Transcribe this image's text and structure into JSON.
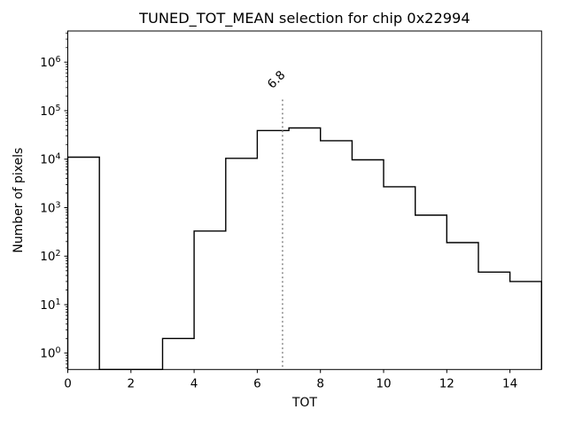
{
  "figure": {
    "background": "#ffffff"
  },
  "chart_data": {
    "type": "bar",
    "subtype": "step-histogram",
    "title": "TUNED_TOT_MEAN selection for chip 0x22994",
    "xlabel": "TOT",
    "ylabel": "Number of pixels",
    "xscale": "linear",
    "yscale": "log",
    "xlim": [
      0,
      15
    ],
    "ylim": [
      0.46,
      4400000
    ],
    "xticks": [
      0,
      2,
      4,
      6,
      8,
      10,
      12,
      14
    ],
    "ytick_exponents": [
      0,
      1,
      2,
      3,
      4,
      5,
      6
    ],
    "ytick_base": "10",
    "bin_edges": [
      0,
      1,
      2,
      3,
      4,
      5,
      6,
      7,
      8,
      9,
      10,
      11,
      12,
      13,
      14,
      15
    ],
    "counts": [
      11000,
      0,
      0,
      2,
      330,
      10400,
      39000,
      44000,
      24000,
      9700,
      2700,
      700,
      190,
      47,
      30
    ],
    "grid": false,
    "legend": null,
    "line_color": "#000000",
    "vline": {
      "x": 6.8,
      "label": "6.8",
      "color": "#8f8f8f",
      "linestyle": "dotted"
    }
  }
}
